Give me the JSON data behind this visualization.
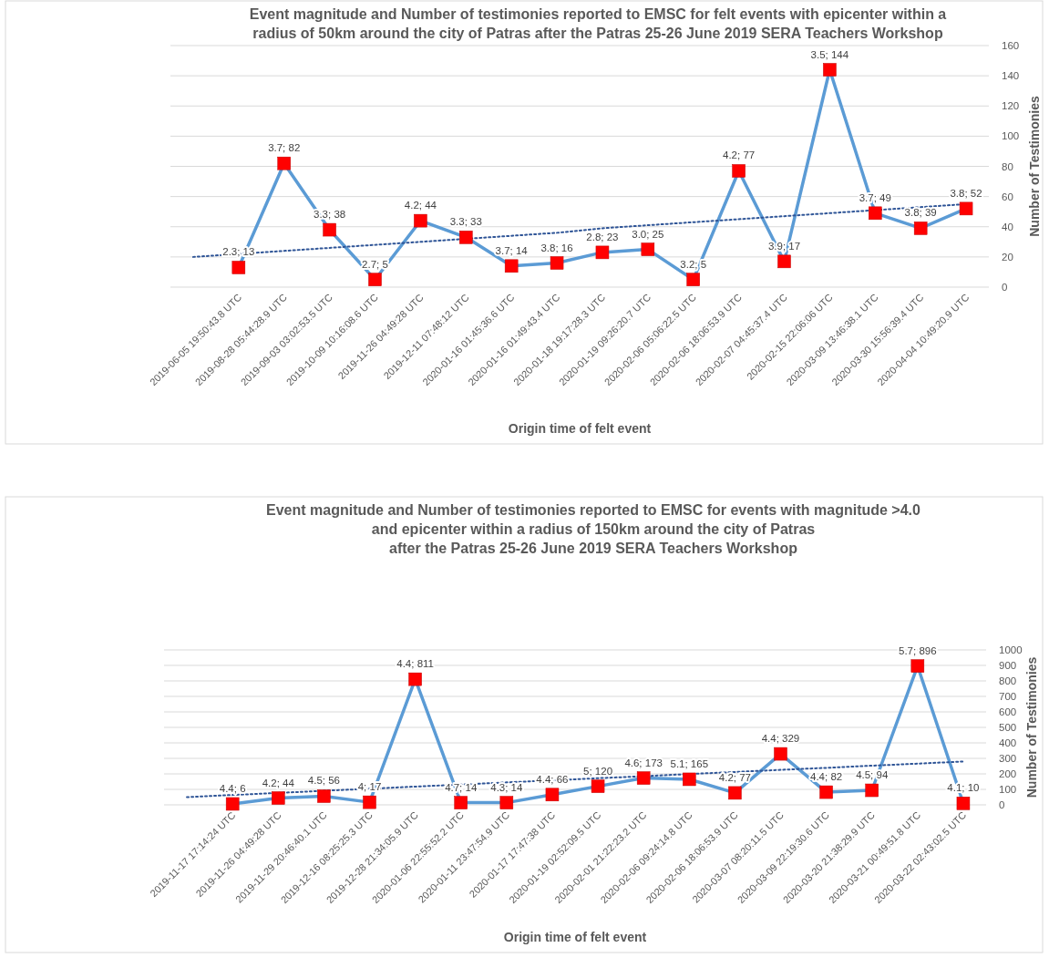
{
  "chart_data": [
    {
      "type": "line",
      "title": "Event magnitude and Number of testimonies reported to EMSC for felt events with epicenter within a\nradius of 50km around the city of Patras after the Patras 25-26 June 2019 SERA Teachers Workshop",
      "xlabel": "Origin time of felt event",
      "ylabel": "Number of Testimonies",
      "categories": [
        null,
        "2019-06-05 19:50:43.8 UTC",
        "2019-08-28 05:44:28.9 UTC",
        "2019-09-03 03:02:53.5 UTC",
        "2019-10-09 10:16:08.6 UTC",
        "2019-11-26 04:49:28 UTC",
        "2019-12-11 07:48:12 UTC",
        "2020-01-16 01:45:36.6 UTC",
        "2020-01-16 01:49:43.4 UTC",
        "2020-01-18 19:17:28.3 UTC",
        "2020-01-19 09:26:20.7 UTC",
        "2020-02-06 05:06:22.5 UTC",
        "2020-02-06 18:06:53.9 UTC",
        "2020-02-07 04:45:37.4 UTC",
        "2020-02-15 22:06:06 UTC",
        "2020-03-09 13:46:38.1 UTC",
        "2020-03-30 15:56:39.4 UTC",
        "2020-04-04 10:49:20.9 UTC"
      ],
      "series": [
        {
          "type": "line",
          "color": "#5b9bd5",
          "marker": "square",
          "line_style": "solid",
          "values": [
            null,
            13,
            82,
            38,
            5,
            44,
            33,
            14,
            16,
            23,
            25,
            5,
            77,
            17,
            144,
            49,
            39,
            52
          ],
          "value_labels": [
            null,
            "2.3; 13",
            "3.7; 82",
            "3.3; 38",
            "2.7; 5",
            "4.2; 44",
            "3.3; 33",
            "3.7; 14",
            "3.8; 16",
            "2.8; 23",
            "3.0; 25",
            "3.2; 5",
            "4.2; 77",
            "3.9; 17",
            "3.5; 144",
            "3.7; 49",
            "3.8; 39",
            "3.8; 52"
          ]
        },
        {
          "type": "line",
          "color": "#2f5597",
          "marker": "none",
          "line_style": "dotted",
          "values": [
            20,
            22,
            24,
            26,
            28,
            30,
            32,
            34,
            36,
            39,
            41,
            43,
            45,
            47,
            49,
            51,
            53,
            55
          ]
        }
      ],
      "ylim": [
        0,
        160
      ],
      "yticks": [
        0,
        20,
        40,
        60,
        80,
        100,
        120,
        140,
        160
      ],
      "grid": "y"
    },
    {
      "type": "line",
      "title": "Event magnitude and Number of testimonies reported to EMSC for events with magnitude >4.0\nand epicenter within a radius of 150km around the city of Patras\nafter the Patras 25-26 June 2019 SERA Teachers Workshop",
      "xlabel": "Origin time of felt event",
      "ylabel": "Number of Testimonies",
      "categories": [
        null,
        "2019-11-17 17:14:24 UTC",
        "2019-11-26 04:49:28 UTC",
        "2019-11-29 20:46:40.1 UTC",
        "2019-12-16 08:25:25.3 UTC",
        "2019-12-28 21:34:05.9 UTC",
        "2020-01-06 22:55:52.2 UTC",
        "2020-01-11 23:47:54.9 UTC",
        "2020-01-17 17:47:38 UTC",
        "2020-01-19 02:52:09.5 UTC",
        "2020-02-01 21:22:23.2 UTC",
        "2020-02-06 09:24:14.8 UTC",
        "2020-02-06 18:06:53.9 UTC",
        "2020-03-07 08:20:11.5 UTC",
        "2020-03-09 22:19:30.6 UTC",
        "2020-03-20 21:38:29.9 UTC",
        "2020-03-21 00:49:51.8 UTC",
        "2020-03-22 02:43:02.5 UTC"
      ],
      "series": [
        {
          "type": "line",
          "color": "#5b9bd5",
          "marker": "square",
          "line_style": "solid",
          "values": [
            null,
            6,
            44,
            56,
            17,
            811,
            14,
            14,
            66,
            120,
            173,
            165,
            77,
            329,
            82,
            94,
            896,
            10
          ],
          "value_labels": [
            null,
            "4.4; 6",
            "4.2; 44",
            "4.5; 56",
            "4; 17",
            "4.4; 811",
            "4.7; 14",
            "4.3; 14",
            "4.4; 66",
            "5; 120",
            "4.6; 173",
            "5.1; 165",
            "4.2; 77",
            "4.4; 329",
            "4.4; 82",
            "4.5; 94",
            "5.7; 896",
            "4.1; 10"
          ]
        },
        {
          "type": "line",
          "color": "#2f5597",
          "marker": "none",
          "line_style": "dotted",
          "values": [
            50,
            64,
            77,
            91,
            104,
            118,
            131,
            145,
            158,
            172,
            185,
            199,
            212,
            226,
            239,
            253,
            266,
            280
          ]
        }
      ],
      "ylim": [
        0,
        1000
      ],
      "yticks": [
        0,
        100,
        200,
        300,
        400,
        500,
        600,
        700,
        800,
        900,
        1000
      ],
      "grid": "y"
    }
  ]
}
